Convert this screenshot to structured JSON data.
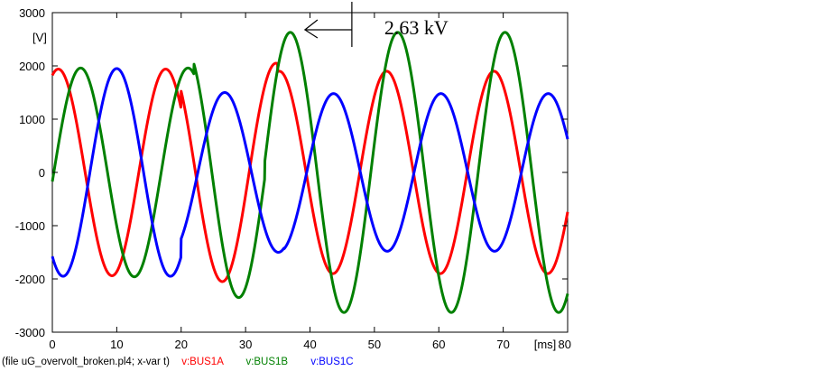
{
  "chart_data": {
    "type": "line",
    "title": "",
    "xlabel": "",
    "ylabel": "",
    "x_unit_label": "[ms]",
    "y_unit_label": "[V]",
    "xlim": [
      0,
      80
    ],
    "ylim": [
      -3000,
      3000
    ],
    "x_ticks": [
      0,
      10,
      20,
      30,
      40,
      50,
      60,
      70,
      80
    ],
    "x_tick_labels": [
      "0",
      "10",
      "20",
      "30",
      "40",
      "50",
      "60",
      "70",
      ""
    ],
    "y_ticks": [
      -3000,
      -2000,
      -1000,
      0,
      1000,
      2000,
      3000
    ],
    "y_tick_labels": [
      "-3000",
      "-2000",
      "-1000",
      "0",
      "1000",
      "2000",
      "3000"
    ],
    "grid": false,
    "frequency_hz": 60,
    "annotation": {
      "text": "2.63 kV",
      "marker_x": 46.5
    },
    "legend": {
      "placement": "bottom-left",
      "prefix": "(file uG_overvolt_broken.pl4; x-var t)",
      "entries": [
        "v:BUS1A",
        "v:BUS1B",
        "v:BUS1C"
      ]
    },
    "series": [
      {
        "name": "v:BUS1A",
        "color": "#ff0000",
        "segments": [
          {
            "t_start": 0,
            "t_end": 20,
            "amplitude": 1940,
            "phase_deg": 70
          },
          {
            "t_start": 20,
            "t_end": 35,
            "amplitude": 2050,
            "phase_deg": 60
          },
          {
            "t_start": 35,
            "t_end": 80,
            "amplitude": 1900,
            "phase_deg": 49
          }
        ]
      },
      {
        "name": "v:BUS1B",
        "color": "#008000",
        "segments": [
          {
            "t_start": 0,
            "t_end": 22,
            "amplitude": 1960,
            "phase_deg": -5
          },
          {
            "t_start": 22,
            "t_end": 33,
            "amplitude": 2350,
            "phase_deg": 5
          },
          {
            "t_start": 33,
            "t_end": 80,
            "amplitude": 2630,
            "phase_deg": 12
          }
        ]
      },
      {
        "name": "v:BUS1C",
        "color": "#0000ff",
        "segments": [
          {
            "t_start": 0,
            "t_end": 20,
            "amplitude": 1950,
            "phase_deg": -126
          },
          {
            "t_start": 20,
            "t_end": 36,
            "amplitude": 1500,
            "phase_deg": -128
          },
          {
            "t_start": 36,
            "t_end": 80,
            "amplitude": 1480,
            "phase_deg": -133
          }
        ]
      }
    ]
  }
}
